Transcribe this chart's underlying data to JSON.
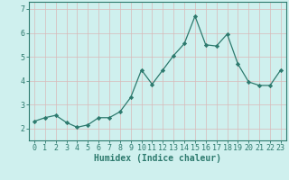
{
  "x": [
    0,
    1,
    2,
    3,
    4,
    5,
    6,
    7,
    8,
    9,
    10,
    11,
    12,
    13,
    14,
    15,
    16,
    17,
    18,
    19,
    20,
    21,
    22,
    23
  ],
  "y": [
    2.3,
    2.45,
    2.55,
    2.25,
    2.05,
    2.15,
    2.45,
    2.45,
    2.7,
    3.3,
    4.45,
    3.85,
    4.45,
    5.05,
    5.55,
    6.7,
    5.5,
    5.45,
    5.95,
    4.7,
    3.95,
    3.8,
    3.8,
    4.45
  ],
  "line_color": "#2d7a6e",
  "marker": "D",
  "marker_size": 2.2,
  "bg_color": "#cff0ee",
  "grid_color": "#d8b8b8",
  "xlabel": "Humidex (Indice chaleur)",
  "xlabel_fontsize": 7,
  "tick_label_fontsize": 6,
  "ylim": [
    1.5,
    7.3
  ],
  "xlim": [
    -0.5,
    23.5
  ],
  "yticks": [
    2,
    3,
    4,
    5,
    6,
    7
  ],
  "xticks": [
    0,
    1,
    2,
    3,
    4,
    5,
    6,
    7,
    8,
    9,
    10,
    11,
    12,
    13,
    14,
    15,
    16,
    17,
    18,
    19,
    20,
    21,
    22,
    23
  ]
}
